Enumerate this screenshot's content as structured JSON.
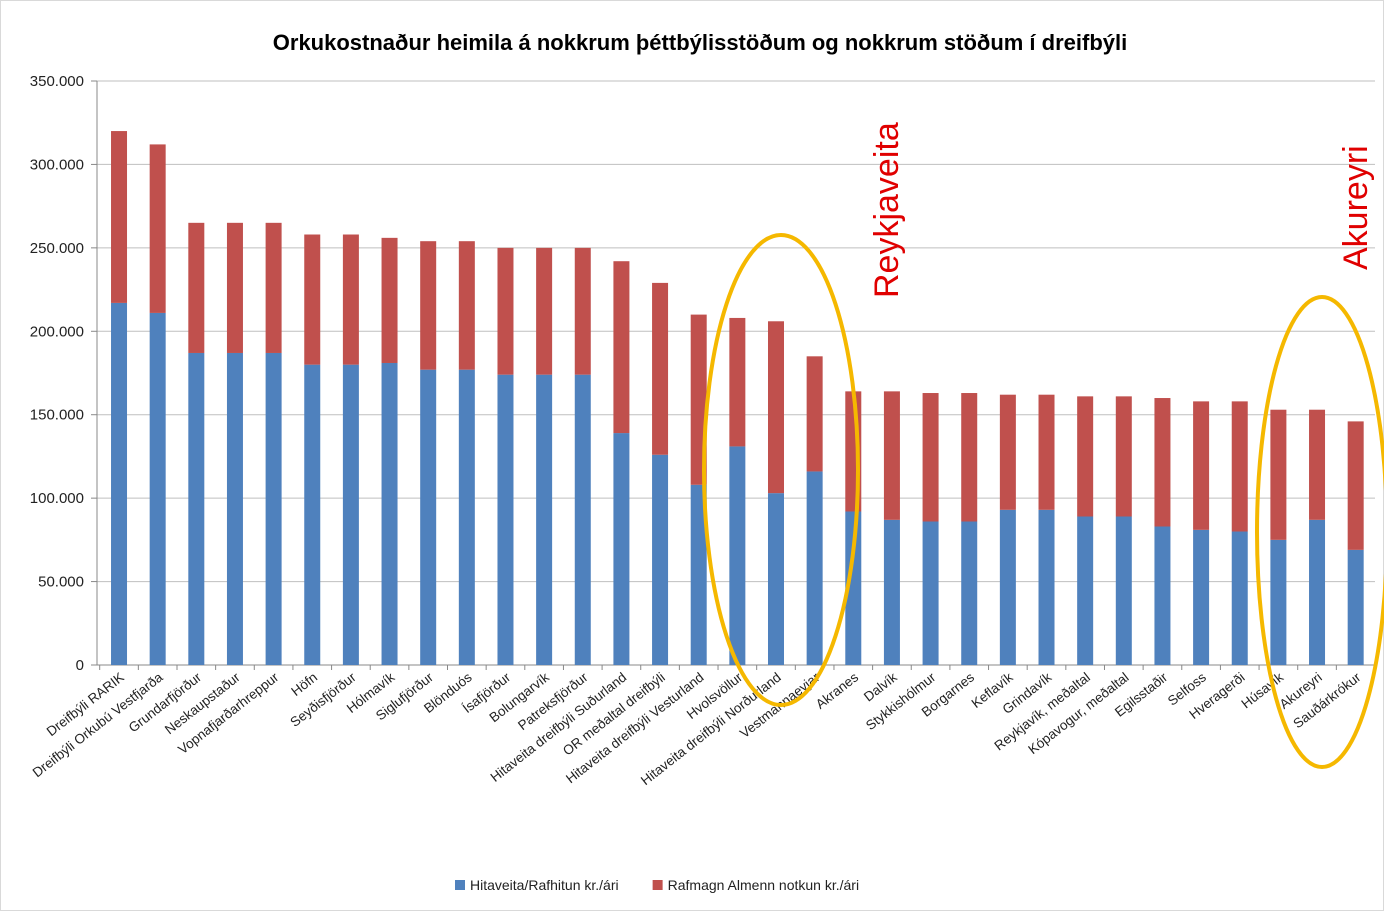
{
  "chart_data": {
    "type": "bar",
    "stacked": true,
    "title": "Orkukostnaður heimila á nokkrum þéttbýlisstöðum og nokkrum stöðum í dreifbýli",
    "categories": [
      "Dreifbýli RARIK",
      "Dreifbýli Orkubú Vestfjarða",
      "Grundarfjörður",
      "Neskaupstaður",
      "Vopnafjarðarhreppur",
      "Höfn",
      "Seyðisfjörður",
      "Hólmavík",
      "Siglufjörður",
      "Blönduós",
      "Ísafjörður",
      "Bolungarvík",
      "Patreksfjörður",
      "Hitaveita dreifbýli Suðurland",
      "OR meðaltal dreifbýli",
      "Hitaveita dreifbýli Vesturland",
      "Hvolsvöllur",
      "Hitaveita dreifbýli Norðurland",
      "Vestmannaeyjar",
      "Akranes",
      "Dalvík",
      "Stykkishólmur",
      "Borgarnes",
      "Keflavík",
      "Grindavík",
      "Reykjavík, meðaltal",
      "Kópavogur, meðaltal",
      "Egilsstaðir",
      "Selfoss",
      "Hveragerði",
      "Húsavík",
      "Akureyri",
      "Sauðárkrókur"
    ],
    "series": [
      {
        "name": "Hitaveita/Rafhitun kr./ári",
        "color": "#4f81bd",
        "values": [
          217000,
          211000,
          187000,
          187000,
          187000,
          180000,
          180000,
          181000,
          177000,
          177000,
          174000,
          174000,
          174000,
          139000,
          126000,
          108000,
          131000,
          103000,
          116000,
          92000,
          87000,
          86000,
          86000,
          93000,
          93000,
          89000,
          89000,
          83000,
          81000,
          80000,
          75000,
          87000,
          69000
        ]
      },
      {
        "name": "Rafmagn Almenn notkun kr./ári",
        "color": "#c0504d",
        "values": [
          103000,
          101000,
          78000,
          78000,
          78000,
          78000,
          78000,
          75000,
          77000,
          77000,
          76000,
          76000,
          76000,
          103000,
          103000,
          102000,
          77000,
          103000,
          69000,
          72000,
          77000,
          77000,
          77000,
          69000,
          69000,
          72000,
          72000,
          77000,
          77000,
          78000,
          78000,
          66000,
          77000
        ]
      }
    ],
    "ylim": [
      0,
      350000
    ],
    "yticks": [
      0,
      {
        "value": 50000,
        "label": "50.000"
      },
      {
        "value": 100000,
        "label": "100.000"
      },
      {
        "value": 150000,
        "label": "150.000"
      },
      {
        "value": 200000,
        "label": "200.000"
      },
      {
        "value": 250000,
        "label": "250.000"
      },
      {
        "value": 300000,
        "label": "300.000"
      },
      {
        "value": 350000,
        "label": "350.000"
      }
    ],
    "grid": true,
    "legend": "bottom",
    "annotations": [
      "Reykjaveita",
      "Akureyri"
    ]
  }
}
